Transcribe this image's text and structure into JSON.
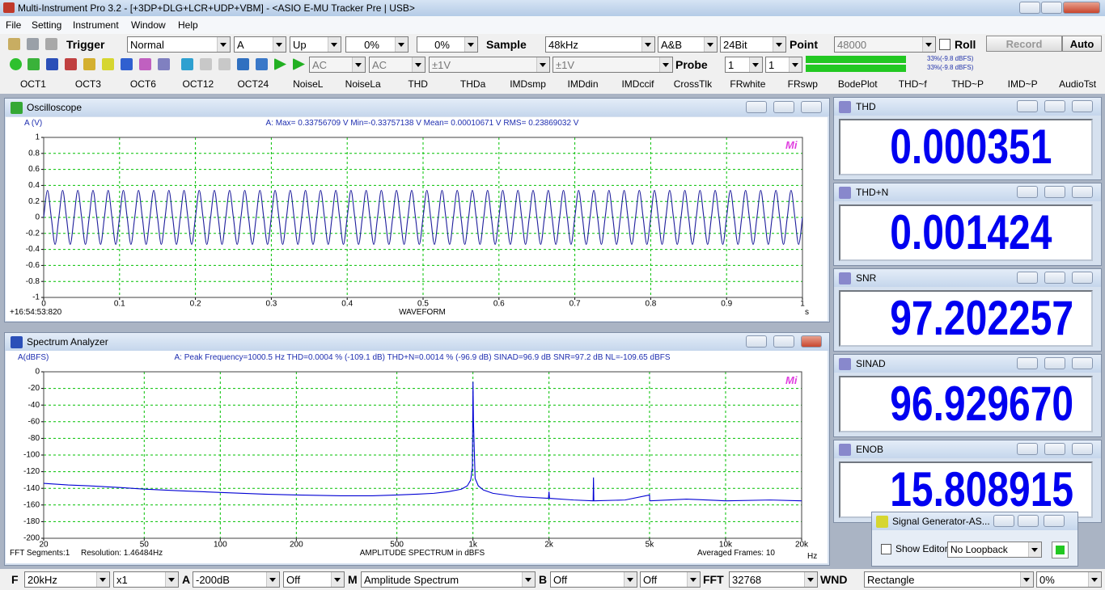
{
  "title_bar": "Multi-Instrument Pro 3.2   -   [+3DP+DLG+LCR+UDP+VBM]   -   <ASIO E-MU Tracker Pre | USB>",
  "menu": [
    "File",
    "Setting",
    "Instrument",
    "Window",
    "Help"
  ],
  "toolbar": {
    "trigger": "Trigger",
    "trigger_mode": "Normal",
    "trigger_channel": "A",
    "trigger_edge": "Up",
    "trigger_level": "0%",
    "trigger_delay": "0%",
    "sample": "Sample",
    "sample_rate": "48kHz",
    "channels": "A&B",
    "bit_depth": "24Bit",
    "point": "Point",
    "points": "48000",
    "roll": "Roll",
    "record": "Record",
    "auto": "Auto"
  },
  "input": {
    "coupling_a": "AC",
    "coupling_b": "AC",
    "range_a": "±1V",
    "range_b": "±1V",
    "probe": "Probe",
    "probe_a": "1",
    "probe_b": "1",
    "level_a": "33%(-9.8 dBFS)",
    "level_b": "33%(-9.8 dBFS)"
  },
  "tests": [
    "OCT1",
    "OCT3",
    "OCT6",
    "OCT12",
    "OCT24",
    "NoiseL",
    "NoiseLa",
    "THD",
    "THDa",
    "IMDsmp",
    "IMDdin",
    "IMDccif",
    "CrossTlk",
    "FRwhite",
    "FRswp",
    "BodePlot",
    "THD~f",
    "THD~P",
    "IMD~P",
    "AudioTst"
  ],
  "chart_data": [
    {
      "type": "line",
      "window_title": "Oscilloscope",
      "ylabel": "A (V)",
      "stats": "A: Max= 0.33756709 V  Min=-0.33757138 V  Mean= 0.00010671 V  RMS= 0.23869032 V",
      "timestamp": "+16:54:53:820",
      "xlabel": "WAVEFORM",
      "xunit": "s",
      "logo": "Mi",
      "color": "#1f1f9c",
      "grid": true,
      "xlim": [
        0,
        1
      ],
      "ylim": [
        -1,
        1
      ],
      "xticks": [
        0,
        0.1,
        0.2,
        0.3,
        0.4,
        0.5,
        0.6,
        0.7,
        0.8,
        0.9,
        1
      ],
      "yticks": [
        1,
        0.8,
        0.6,
        0.4,
        0.2,
        0,
        -0.2,
        -0.4,
        -0.6,
        -0.8,
        -1
      ],
      "x": [
        0,
        0.005,
        0.01,
        0.015,
        0.02,
        0.025,
        0.03,
        0.035,
        0.04,
        0.045,
        0.05,
        0.055,
        0.06,
        0.065,
        0.07,
        0.075,
        0.08,
        0.085,
        0.09,
        0.095,
        0.1,
        0.105,
        0.11,
        0.115,
        0.12,
        0.125,
        0.13,
        0.135,
        0.14,
        0.145,
        0.15,
        0.155,
        0.16,
        0.165,
        0.17,
        0.175,
        0.18,
        0.185,
        0.19,
        0.195,
        0.2,
        0.205,
        0.21,
        0.215,
        0.22,
        0.225,
        0.23,
        0.235,
        0.24,
        0.245,
        0.25,
        0.255,
        0.26,
        0.265,
        0.27,
        0.275,
        0.28,
        0.285,
        0.29,
        0.295,
        0.3,
        0.305,
        0.31,
        0.315,
        0.32,
        0.325,
        0.33,
        0.335,
        0.34,
        0.345,
        0.35,
        0.355,
        0.36,
        0.365,
        0.37,
        0.375,
        0.38,
        0.385,
        0.39,
        0.395,
        0.4,
        0.405,
        0.41,
        0.415,
        0.42,
        0.425,
        0.43,
        0.435,
        0.44,
        0.445,
        0.45,
        0.455,
        0.46,
        0.465,
        0.47,
        0.475,
        0.48,
        0.485,
        0.49,
        0.495,
        0.5,
        0.505,
        0.51,
        0.515,
        0.52,
        0.525,
        0.53,
        0.535,
        0.54,
        0.545,
        0.55,
        0.555,
        0.56,
        0.565,
        0.57,
        0.575,
        0.58,
        0.585,
        0.59,
        0.595,
        0.6,
        0.605,
        0.61,
        0.615,
        0.62,
        0.625,
        0.63,
        0.635,
        0.64,
        0.645,
        0.65,
        0.655,
        0.66,
        0.665,
        0.67,
        0.675,
        0.68,
        0.685,
        0.69,
        0.695,
        0.7,
        0.705,
        0.71,
        0.715,
        0.72,
        0.725,
        0.73,
        0.735,
        0.74,
        0.745,
        0.75,
        0.755,
        0.76,
        0.765,
        0.77,
        0.775,
        0.78,
        0.785,
        0.79,
        0.795,
        0.8,
        0.805,
        0.81,
        0.815,
        0.82,
        0.825,
        0.83,
        0.835,
        0.84,
        0.845,
        0.85,
        0.855,
        0.86,
        0.865,
        0.87,
        0.875,
        0.88,
        0.885,
        0.89,
        0.895,
        0.9,
        0.905,
        0.91,
        0.915,
        0.92,
        0.925,
        0.93,
        0.935,
        0.94,
        0.945,
        0.95,
        0.955,
        0.96,
        0.965,
        0.97,
        0.975,
        0.98,
        0.985,
        0.99,
        0.995,
        1
      ],
      "values": [
        0,
        0.3376,
        0,
        -0.3376,
        0,
        0.3376,
        0,
        -0.3376,
        0,
        0.3376,
        0,
        -0.3376,
        0,
        0.3376,
        0,
        -0.3376,
        0,
        0.3376,
        0,
        -0.3376,
        0,
        0.3376,
        0,
        -0.3376,
        0,
        0.3376,
        0,
        -0.3376,
        0,
        0.3376,
        0,
        -0.3376,
        0,
        0.3376,
        0,
        -0.3376,
        0,
        0.3376,
        0,
        -0.3376,
        0,
        0.3376,
        0,
        -0.3376,
        0,
        0.3376,
        0,
        -0.3376,
        0,
        0.3376,
        0,
        -0.3376,
        0,
        0.3376,
        0,
        -0.3376,
        0,
        0.3376,
        0,
        -0.3376,
        0,
        0.3376,
        0,
        -0.3376,
        0,
        0.3376,
        0,
        -0.3376,
        0,
        0.3376,
        0,
        -0.3376,
        0,
        0.3376,
        0,
        -0.3376,
        0,
        0.3376,
        0,
        -0.3376,
        0,
        0.3376,
        0,
        -0.3376,
        0,
        0.3376,
        0,
        -0.3376,
        0,
        0.3376,
        0,
        -0.3376,
        0,
        0.3376,
        0,
        -0.3376,
        0,
        0.3376,
        0,
        -0.3376,
        0,
        0.3376,
        0,
        -0.3376,
        0,
        0.3376,
        0,
        -0.3376,
        0,
        0.3376,
        0,
        -0.3376,
        0,
        0.3376,
        0,
        -0.3376,
        0,
        0.3376,
        0,
        -0.3376,
        0,
        0.3376,
        0,
        -0.3376,
        0,
        0.3376,
        0,
        -0.3376,
        0,
        0.3376,
        0,
        -0.3376,
        0,
        0.3376,
        0,
        -0.3376,
        0,
        0.3376,
        0,
        -0.3376,
        0,
        0.3376,
        0,
        -0.3376,
        0,
        0.3376,
        0,
        -0.3376,
        0,
        0.3376,
        0,
        -0.3376,
        0,
        0.3376,
        0,
        -0.3376,
        0,
        0.3376,
        0,
        -0.3376,
        0,
        0.3376,
        0,
        -0.3376,
        0,
        0.3376,
        0,
        -0.3376,
        0,
        0.3376,
        0,
        -0.3376,
        0,
        0.3376,
        0,
        -0.3376,
        0,
        0.3376,
        0,
        -0.3376,
        0,
        0.3376,
        0,
        -0.3376,
        0,
        0.3376,
        0,
        -0.3376,
        0,
        0.3376,
        0,
        -0.3376,
        0,
        0.3376,
        0,
        -0.3376,
        0,
        0.3376,
        0,
        -0.3376,
        0
      ]
    },
    {
      "type": "line",
      "window_title": "Spectrum Analyzer",
      "ylabel": "A(dBFS)",
      "stats": "A: Peak Frequency=1000.5 Hz  THD=0.0004 % (-109.1 dB)  THD+N=0.0014 % (-96.9 dB)  SINAD=96.9 dB  SNR=97.2 dB  NL=-109.65 dBFS",
      "fft_segments": "FFT Segments:1",
      "resolution": "Resolution: 1.46484Hz",
      "xlabel": "AMPLITUDE SPECTRUM in dBFS",
      "frames": "Averaged Frames: 10",
      "xunit": "Hz",
      "logo": "Mi",
      "color": "#0000d4",
      "grid": true,
      "log_x": true,
      "xlim": [
        20,
        20000
      ],
      "ylim": [
        -200,
        0
      ],
      "xticks": [
        20,
        50,
        100,
        200,
        500,
        {
          "value": 1000,
          "label": "1k"
        },
        {
          "value": 2000,
          "label": "2k"
        },
        {
          "value": 5000,
          "label": "5k"
        },
        {
          "value": 10000,
          "label": "10k"
        },
        {
          "value": 20000,
          "label": "20k"
        }
      ],
      "yticks": [
        0,
        -20,
        -40,
        -60,
        -80,
        -100,
        -120,
        -140,
        -160,
        -180,
        -200
      ],
      "x": [
        20,
        25,
        30,
        40,
        50,
        70,
        100,
        150,
        200,
        300,
        400,
        500,
        600,
        700,
        800,
        900,
        950,
        980,
        995,
        1000.5,
        1005,
        1020,
        1050,
        1100,
        1200,
        1500,
        1990,
        2000,
        2010,
        2500,
        2990,
        3000,
        3010,
        4000,
        5000,
        5010,
        7000,
        10000,
        15000,
        20000
      ],
      "values": [
        -134,
        -136,
        -137,
        -139,
        -141,
        -143,
        -145,
        -147,
        -148,
        -149,
        -149,
        -148,
        -147,
        -146,
        -144,
        -141,
        -137,
        -130,
        -115,
        -12,
        -60,
        -128,
        -137,
        -142,
        -146,
        -150,
        -152,
        -144,
        -152,
        -154,
        -155,
        -127,
        -155,
        -154,
        -148,
        -155,
        -153,
        -155,
        -154,
        -155
      ]
    }
  ],
  "meters": [
    {
      "title": "THD",
      "value": "0.000351 %"
    },
    {
      "title": "THD+N",
      "value": "0.001424 %"
    },
    {
      "title": "SNR",
      "value": "97.202257 dB"
    },
    {
      "title": "SINAD",
      "value": "96.929670 dB"
    },
    {
      "title": "ENOB",
      "value": "15.808915 Bit"
    }
  ],
  "signal_generator": {
    "title": "Signal Generator-AS...",
    "show_editor": "Show Editor",
    "loopback": "No Loopback"
  },
  "status_bar": {
    "f": "F",
    "frequency": "20kHz",
    "zoom": "x1",
    "a": "A",
    "floor": "-200dB",
    "a_mode": "Off",
    "m": "M",
    "mode": "Amplitude Spectrum",
    "b": "B",
    "b_mode": "Off",
    "b_mode2": "Off",
    "fft": "FFT",
    "fft_size": "32768",
    "wnd": "WND",
    "window": "Rectangle",
    "overlap": "0%"
  }
}
